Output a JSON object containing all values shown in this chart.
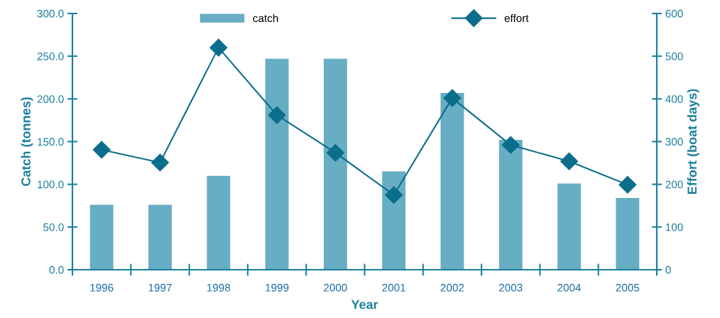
{
  "chart_data": {
    "type": "bar",
    "xlabel": "Year",
    "ylabel": "Catch (tonnes)",
    "y2label": "Effort (boat days)",
    "categories": [
      "1996",
      "1997",
      "1998",
      "1999",
      "2000",
      "2001",
      "2002",
      "2003",
      "2004",
      "2005"
    ],
    "series": [
      {
        "name": "catch",
        "color": "#67adc4",
        "values": [
          76,
          76,
          110,
          247,
          247,
          115,
          207,
          152,
          101,
          84
        ]
      },
      {
        "name": "effort",
        "type": "line",
        "axis": "y2",
        "color": "#0b6e8a",
        "marker": "diamond",
        "values": [
          281,
          251,
          520,
          362,
          274,
          175,
          402,
          292,
          254,
          199
        ]
      }
    ],
    "ylim": [
      0,
      300
    ],
    "yticks": [
      {
        "value": 0,
        "label": "0.0"
      },
      {
        "value": 50,
        "label": "50.0"
      },
      {
        "value": 100,
        "label": "100.0"
      },
      {
        "value": 150,
        "label": "150.0"
      },
      {
        "value": 200,
        "label": "200.0"
      },
      {
        "value": 250,
        "label": "250.0"
      },
      {
        "value": 300,
        "label": "300.0"
      }
    ],
    "y2lim": [
      0,
      600
    ],
    "y2ticks": [
      0,
      100,
      200,
      300,
      400,
      500,
      600
    ],
    "grid": false,
    "legend": "top"
  }
}
